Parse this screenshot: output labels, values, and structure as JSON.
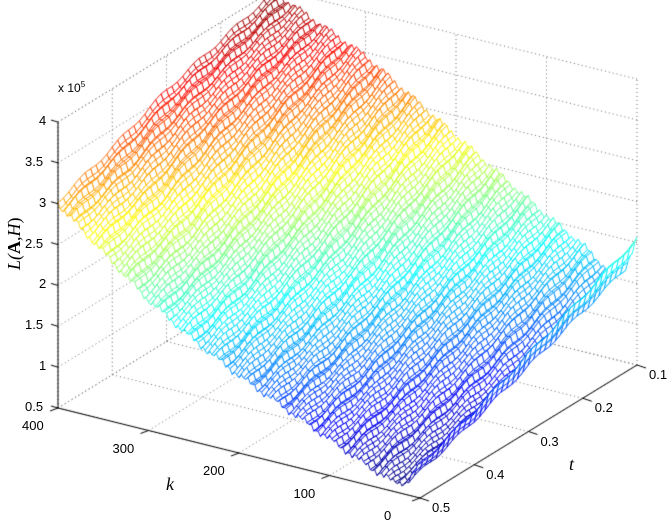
{
  "chart_data": {
    "type": "surface",
    "title": "",
    "xlabel": "k",
    "ylabel": "t",
    "zlabel_parts": {
      "prefix": "L(",
      "bold": "A",
      "sep": ",",
      "italic": "H",
      "suffix": ")"
    },
    "z_multiplier": "x 10",
    "z_multiplier_exp": "5",
    "x_ticks": [
      "400",
      "300",
      "200",
      "100",
      "0"
    ],
    "x_range": [
      0,
      400
    ],
    "y_ticks": [
      "0.1",
      "0.2",
      "0.3",
      "0.4",
      "0.5"
    ],
    "y_range": [
      0.1,
      0.5
    ],
    "z_ticks": [
      "0.5",
      "1",
      "1.5",
      "2",
      "2.5",
      "3",
      "3.5",
      "4"
    ],
    "z_range": [
      0.5,
      4.0
    ],
    "grid": true,
    "colormap": "jet",
    "k_grid": [
      400,
      350,
      300,
      250,
      200,
      150,
      100,
      60,
      30,
      15,
      0
    ],
    "t_grid": [
      0.1,
      0.2,
      0.3,
      0.4,
      0.5
    ],
    "values_x1e5": [
      [
        3.95,
        3.75,
        3.55,
        3.25,
        3.0
      ],
      [
        3.7,
        3.45,
        3.15,
        2.8,
        2.55
      ],
      [
        3.45,
        3.1,
        2.7,
        2.35,
        2.1
      ],
      [
        3.1,
        2.75,
        2.35,
        2.0,
        1.75
      ],
      [
        2.75,
        2.4,
        2.0,
        1.7,
        1.45
      ],
      [
        2.4,
        2.05,
        1.7,
        1.4,
        1.2
      ],
      [
        2.05,
        1.75,
        1.45,
        1.15,
        0.95
      ],
      [
        1.8,
        1.5,
        1.2,
        0.95,
        0.75
      ],
      [
        1.55,
        1.25,
        1.0,
        0.8,
        0.62
      ],
      [
        1.6,
        1.35,
        1.1,
        0.85,
        0.65
      ],
      [
        2.05,
        1.75,
        1.45,
        1.15,
        0.9
      ]
    ]
  },
  "labels": {
    "k": "k",
    "t": "t"
  }
}
